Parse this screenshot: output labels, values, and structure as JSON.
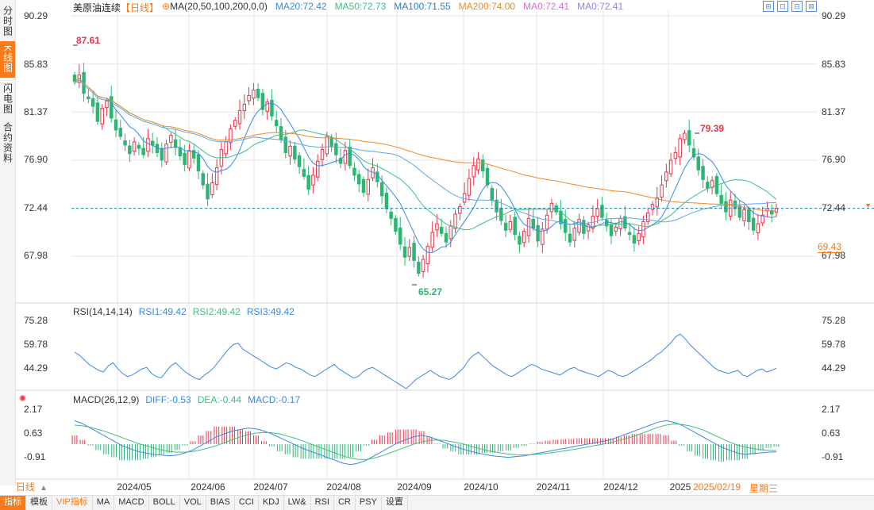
{
  "left_tabs": [
    {
      "label": "分时图",
      "active": false
    },
    {
      "label": "K线图",
      "active": true
    },
    {
      "label": "闪电图",
      "active": false
    },
    {
      "label": "合约资料",
      "active": false
    }
  ],
  "header": {
    "symbol": "美原油连续",
    "period": "【日线】",
    "gear_icon": "⊕",
    "ma_params": "MA(20,50,100,200,0,0)",
    "ma_values": [
      {
        "label": "MA20:72.42",
        "color": "#3a88e8"
      },
      {
        "label": "MA50:72.73",
        "color": "#3fbf7f"
      },
      {
        "label": "MA100:71.55",
        "color": "#2a7fc0"
      },
      {
        "label": "MA200:74.00",
        "color": "#f08a24"
      },
      {
        "label": "MA0:72.41",
        "color": "#e36ad8"
      },
      {
        "label": "MA0:72.41",
        "color": "#9a7fe6"
      }
    ]
  },
  "window_icons": [
    "⊞",
    "⊡",
    "⊟",
    "⊠"
  ],
  "rsi_header": {
    "params": "RSI(14,14,14)",
    "values": [
      {
        "label": "RSI1:49.42",
        "color": "#3a88e8"
      },
      {
        "label": "RSI2:49.42",
        "color": "#3fbf7f"
      },
      {
        "label": "RSI3:49.42",
        "color": "#3a88e8"
      }
    ]
  },
  "macd_header": {
    "params": "MACD(26,12,9)",
    "values": [
      {
        "label": "DIFF:-0.53",
        "color": "#3a88e8"
      },
      {
        "label": "DEA:-0.44",
        "color": "#3fbf7f"
      },
      {
        "label": "MACD:-0.17",
        "color": "#3a88e8"
      }
    ]
  },
  "price_axis": {
    "ticks": [
      "90.29",
      "85.83",
      "81.37",
      "76.90",
      "72.44",
      "67.98"
    ],
    "current_price": "72.44",
    "close_tag": "69.43",
    "high_label": "87.61",
    "high2_label": "79.39",
    "low_label": "65.27"
  },
  "rsi_axis": {
    "ticks": [
      "75.28",
      "59.78",
      "44.29"
    ]
  },
  "macd_axis": {
    "ticks": [
      "2.17",
      "0.63",
      "-0.91"
    ]
  },
  "x_axis": {
    "labels": [
      "2024/05",
      "2024/06",
      "2024/07",
      "2024/08",
      "2024/09",
      "2024/10",
      "2024/11",
      "2024/12",
      "2025"
    ],
    "current_date": "2025/02/19",
    "current_weekday": "星期三"
  },
  "period_selector": "日线",
  "period_selector_arrow": "▲",
  "indicator_tabs": [
    {
      "label": "指标",
      "active": true,
      "vip": false
    },
    {
      "label": "模板",
      "active": false,
      "vip": false
    },
    {
      "label": "VIP指标",
      "active": false,
      "vip": true
    },
    {
      "label": "MA",
      "active": false,
      "vip": false
    },
    {
      "label": "MACD",
      "active": false,
      "vip": false
    },
    {
      "label": "BOLL",
      "active": false,
      "vip": false
    },
    {
      "label": "VOL",
      "active": false,
      "vip": false
    },
    {
      "label": "BIAS",
      "active": false,
      "vip": false
    },
    {
      "label": "CCI",
      "active": false,
      "vip": false
    },
    {
      "label": "KDJ",
      "active": false,
      "vip": false
    },
    {
      "label": "LW&",
      "active": false,
      "vip": false
    },
    {
      "label": "RSI",
      "active": false,
      "vip": false
    },
    {
      "label": "CR",
      "active": false,
      "vip": false
    },
    {
      "label": "PSY",
      "active": false,
      "vip": false
    },
    {
      "label": "设置",
      "active": false,
      "vip": false
    }
  ],
  "colors": {
    "up": "#e8354a",
    "down": "#2bb673",
    "accent": "#f77b1b",
    "ma20": "#3a88e8",
    "ma50": "#3fbf7f",
    "ma200": "#f08a24",
    "grid": "#e6e6e6",
    "current_line": "#1a7ea6"
  },
  "chart_data": [
    {
      "type": "candlestick",
      "title": "美原油连续【日线】",
      "ylim": [
        65.27,
        90.29
      ],
      "y_ticks": [
        90.29,
        85.83,
        81.37,
        76.9,
        72.44,
        67.98
      ],
      "x_ticks": [
        "2024/05",
        "2024/06",
        "2024/07",
        "2024/08",
        "2024/09",
        "2024/10",
        "2024/11",
        "2024/12",
        "2025"
      ],
      "closes": [
        84.2,
        84.8,
        83.1,
        82.6,
        81.9,
        80.5,
        81.7,
        82.4,
        80.8,
        79.7,
        79.1,
        78.3,
        77.5,
        78.6,
        78.0,
        77.4,
        78.9,
        78.3,
        77.6,
        76.9,
        78.4,
        79.2,
        78.1,
        77.3,
        76.5,
        77.8,
        77.1,
        75.9,
        74.6,
        73.3,
        74.8,
        76.2,
        77.9,
        78.6,
        79.8,
        80.6,
        81.5,
        82.1,
        82.9,
        83.4,
        82.7,
        81.6,
        82.3,
        81.0,
        80.1,
        78.8,
        77.6,
        78.2,
        77.0,
        76.3,
        75.4,
        74.2,
        75.5,
        76.8,
        77.9,
        79.1,
        78.2,
        77.4,
        76.6,
        77.8,
        76.4,
        75.5,
        74.7,
        73.9,
        75.1,
        76.2,
        74.9,
        73.6,
        72.4,
        71.5,
        70.3,
        69.1,
        67.9,
        68.8,
        67.6,
        66.4,
        67.7,
        68.9,
        70.2,
        71.0,
        70.1,
        69.3,
        70.8,
        71.9,
        72.6,
        73.8,
        75.2,
        76.4,
        77.0,
        75.9,
        74.6,
        73.2,
        72.1,
        71.3,
        70.4,
        71.2,
        70.0,
        69.1,
        70.3,
        71.5,
        70.6,
        69.4,
        70.5,
        71.8,
        72.9,
        72.1,
        71.0,
        70.2,
        69.3,
        70.6,
        71.4,
        70.1,
        70.9,
        71.7,
        72.4,
        71.6,
        70.8,
        69.9,
        70.7,
        71.5,
        70.6,
        70.0,
        69.2,
        70.1,
        71.2,
        72.0,
        72.8,
        73.4,
        74.6,
        75.8,
        76.9,
        77.6,
        78.9,
        79.4,
        78.3,
        77.2,
        76.0,
        75.1,
        74.3,
        75.0,
        73.8,
        72.9,
        72.1,
        73.2,
        72.4,
        71.6,
        72.3,
        71.2,
        70.4,
        71.0,
        71.8,
        72.4,
        71.9,
        72.44
      ],
      "candle_colors_hint": "red=up, green=down",
      "annotations": [
        {
          "label": "87.61",
          "kind": "high"
        },
        {
          "label": "79.39",
          "kind": "high"
        },
        {
          "label": "65.27",
          "kind": "low"
        }
      ],
      "series": [
        {
          "name": "MA20",
          "value": 72.42
        },
        {
          "name": "MA50",
          "value": 72.73
        },
        {
          "name": "MA100",
          "value": 71.55
        },
        {
          "name": "MA200",
          "value": 74.0
        }
      ]
    },
    {
      "type": "line",
      "title": "RSI(14,14,14)",
      "ylim": [
        36,
        83
      ],
      "y_ticks": [
        75.28,
        59.78,
        44.29
      ],
      "values": [
        60,
        58,
        55,
        52,
        50,
        48,
        47,
        51,
        53,
        49,
        46,
        44,
        45,
        47,
        49,
        50,
        46,
        44,
        43,
        47,
        51,
        53,
        50,
        47,
        45,
        43,
        42,
        45,
        47,
        50,
        54,
        58,
        62,
        65,
        66,
        62,
        60,
        58,
        56,
        54,
        52,
        50,
        49,
        51,
        53,
        52,
        50,
        49,
        47,
        45,
        44,
        46,
        48,
        50,
        52,
        49,
        47,
        45,
        43,
        44,
        47,
        49,
        50,
        48,
        46,
        44,
        42,
        40,
        38,
        36,
        39,
        42,
        44,
        46,
        48,
        46,
        44,
        43,
        42,
        44,
        47,
        50,
        55,
        58,
        60,
        57,
        54,
        51,
        49,
        47,
        45,
        44,
        46,
        48,
        50,
        52,
        51,
        49,
        48,
        47,
        46,
        45,
        47,
        49,
        50,
        48,
        47,
        46,
        45,
        44,
        46,
        48,
        47,
        45,
        44,
        45,
        47,
        49,
        51,
        53,
        55,
        58,
        60,
        63,
        66,
        70,
        72,
        69,
        65,
        62,
        59,
        56,
        53,
        50,
        48,
        47,
        46,
        47,
        48,
        45,
        44,
        46,
        48,
        49,
        47,
        48,
        49.4
      ],
      "series": [
        {
          "name": "RSI1",
          "value": 49.42
        },
        {
          "name": "RSI2",
          "value": 49.42
        },
        {
          "name": "RSI3",
          "value": 49.42
        }
      ]
    },
    {
      "type": "line",
      "title": "MACD(26,12,9)",
      "ylim": [
        -1.9,
        2.6
      ],
      "y_ticks": [
        2.17,
        0.63,
        -0.91
      ],
      "diff": [
        1.6,
        1.4,
        1.1,
        0.8,
        0.5,
        0.2,
        -0.1,
        -0.3,
        -0.5,
        -0.6,
        -0.7,
        -0.75,
        -0.8,
        -0.75,
        -0.6,
        -0.4,
        -0.1,
        0.2,
        0.5,
        0.7,
        0.9,
        1.0,
        1.1,
        1.05,
        0.9,
        0.7,
        0.45,
        0.2,
        -0.05,
        -0.3,
        -0.5,
        -0.7,
        -0.9,
        -1.1,
        -1.3,
        -1.4,
        -1.3,
        -1.1,
        -0.8,
        -0.5,
        -0.2,
        0.1,
        0.3,
        0.5,
        0.6,
        0.5,
        0.3,
        0.1,
        -0.1,
        -0.3,
        -0.45,
        -0.6,
        -0.7,
        -0.8,
        -0.85,
        -0.9,
        -0.85,
        -0.8,
        -0.7,
        -0.6,
        -0.5,
        -0.4,
        -0.3,
        -0.2,
        -0.1,
        0.0,
        0.1,
        0.2,
        0.3,
        0.5,
        0.7,
        0.9,
        1.1,
        1.3,
        1.5,
        1.6,
        1.5,
        1.3,
        1.0,
        0.7,
        0.4,
        0.1,
        -0.2,
        -0.4,
        -0.6,
        -0.7,
        -0.65,
        -0.6,
        -0.55,
        -0.53
      ],
      "dea": [
        1.3,
        1.25,
        1.15,
        1.0,
        0.85,
        0.65,
        0.45,
        0.25,
        0.05,
        -0.1,
        -0.25,
        -0.4,
        -0.5,
        -0.55,
        -0.55,
        -0.5,
        -0.4,
        -0.25,
        -0.1,
        0.1,
        0.3,
        0.5,
        0.65,
        0.75,
        0.8,
        0.78,
        0.7,
        0.55,
        0.4,
        0.2,
        0.0,
        -0.2,
        -0.4,
        -0.6,
        -0.8,
        -0.95,
        -1.05,
        -1.05,
        -0.95,
        -0.8,
        -0.6,
        -0.4,
        -0.2,
        0.0,
        0.15,
        0.25,
        0.28,
        0.25,
        0.15,
        0.05,
        -0.1,
        -0.25,
        -0.4,
        -0.5,
        -0.6,
        -0.68,
        -0.72,
        -0.74,
        -0.72,
        -0.68,
        -0.62,
        -0.55,
        -0.47,
        -0.38,
        -0.3,
        -0.2,
        -0.1,
        0.0,
        0.1,
        0.25,
        0.4,
        0.55,
        0.75,
        0.95,
        1.15,
        1.3,
        1.38,
        1.35,
        1.25,
        1.1,
        0.9,
        0.65,
        0.4,
        0.15,
        -0.05,
        -0.2,
        -0.3,
        -0.38,
        -0.42,
        -0.44
      ],
      "series": [
        {
          "name": "DIFF",
          "value": -0.53
        },
        {
          "name": "DEA",
          "value": -0.44
        },
        {
          "name": "MACD",
          "value": -0.17
        }
      ]
    }
  ]
}
